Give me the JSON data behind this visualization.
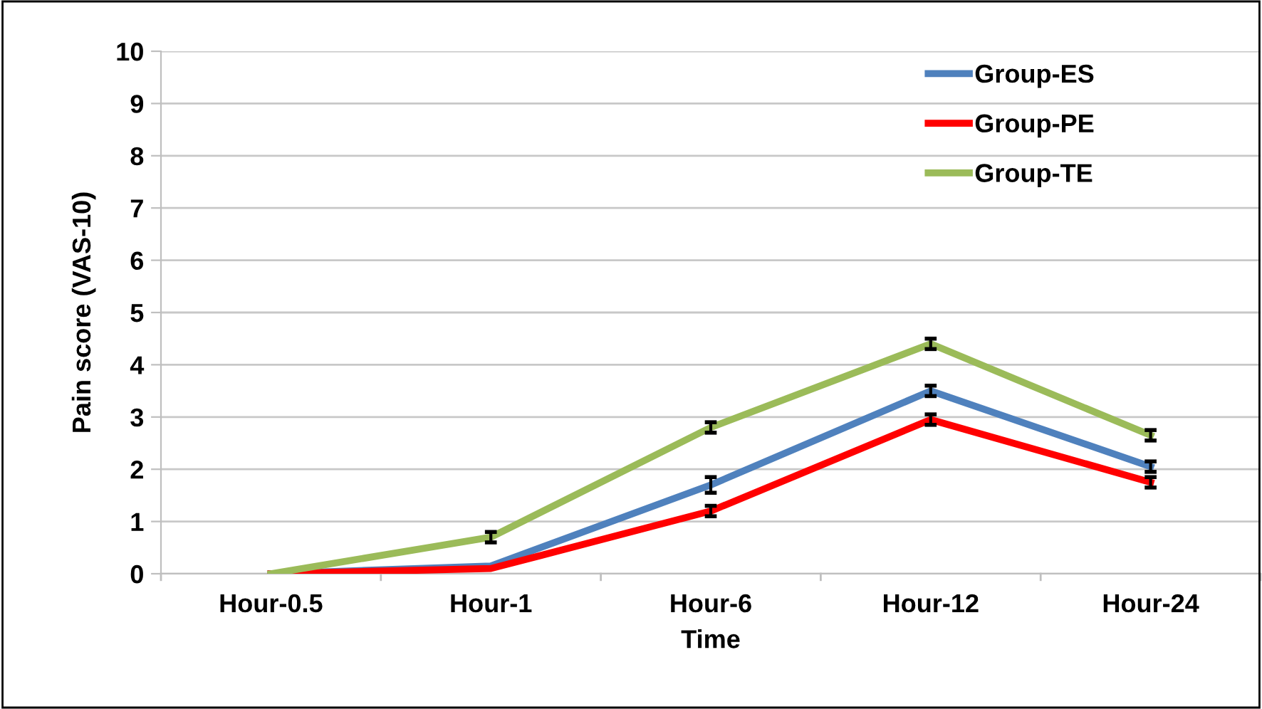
{
  "chart_data": {
    "type": "line",
    "xlabel": "Time",
    "ylabel": "Pain score (VAS-10)",
    "categories": [
      "Hour-0.5",
      "Hour-1",
      "Hour-6",
      "Hour-12",
      "Hour-24"
    ],
    "series": [
      {
        "name": "Group-ES",
        "color": "#4f81bd",
        "values": [
          0,
          0.15,
          1.7,
          3.5,
          2.05
        ],
        "errors": [
          null,
          null,
          0.15,
          0.1,
          0.1
        ]
      },
      {
        "name": "Group-PE",
        "color": "#ff0000",
        "values": [
          0,
          0.1,
          1.2,
          2.95,
          1.75
        ],
        "errors": [
          null,
          null,
          0.1,
          0.1,
          0.1
        ]
      },
      {
        "name": "Group-TE",
        "color": "#9bbb59",
        "values": [
          0,
          0.7,
          2.8,
          4.4,
          2.65
        ],
        "errors": [
          null,
          0.1,
          0.1,
          0.1,
          0.1
        ]
      }
    ],
    "ylim": [
      0,
      10
    ],
    "yticks": [
      0,
      1,
      2,
      3,
      4,
      5,
      6,
      7,
      8,
      9,
      10
    ],
    "grid": "y",
    "legend": "top right",
    "marker": "none",
    "line_style": "solid"
  }
}
